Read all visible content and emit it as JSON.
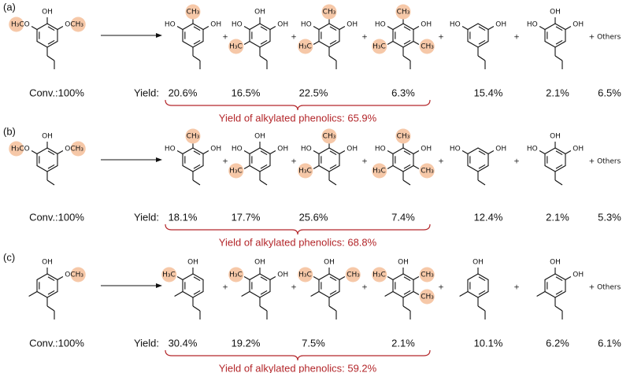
{
  "plus": "+",
  "rows": [
    {
      "label": "(a)",
      "reactant": [
        "OH",
        "H₃CO",
        "OCH₃"
      ],
      "products": [
        [
          "HO",
          "CH₃",
          "OH"
        ],
        [
          "OH",
          "HO",
          "OH",
          "H₃C"
        ],
        [
          "HO",
          "CH₃",
          "OH",
          "H₃C"
        ],
        [
          "HO",
          "CH₃",
          "OH",
          "H₃C",
          "CH₃"
        ],
        [
          "HO",
          "OH"
        ],
        [
          "HO",
          "OH",
          "OH"
        ]
      ],
      "others": "+ Others",
      "conversion": "Conv.:100%",
      "yield_label": "Yield:",
      "yields": [
        "20.6%",
        "16.5%",
        "22.5%",
        "6.3%",
        "15.4%",
        "2.1%",
        "6.5%"
      ],
      "summary": "Yield of alkylated phenolics: 65.9%"
    },
    {
      "label": "(b)",
      "reactant": [
        "OH",
        "H₃CO",
        "OCH₃"
      ],
      "products": [
        [
          "HO",
          "CH₃",
          "OH"
        ],
        [
          "OH",
          "HO",
          "OH",
          "H₃C"
        ],
        [
          "HO",
          "CH₃",
          "OH",
          "H₃C"
        ],
        [
          "HO",
          "CH₃",
          "OH",
          "H₃C",
          "CH₃"
        ],
        [
          "HO",
          "OH"
        ],
        [
          "HO",
          "OH",
          "OH"
        ]
      ],
      "others": "+ Others",
      "conversion": "Conv.:100%",
      "yield_label": "Yield:",
      "yields": [
        "18.1%",
        "17.7%",
        "25.6%",
        "7.4%",
        "12.4%",
        "2.1%",
        "5.3%"
      ],
      "summary": "Yield of alkylated phenolics: 68.8%"
    },
    {
      "label": "(c)",
      "reactant": [
        "OH",
        "OCH₃"
      ],
      "products": [
        [
          "OH",
          "H₃C"
        ],
        [
          "H₃C",
          "OH",
          "OH"
        ],
        [
          "H₃C",
          "OH",
          "CH₃"
        ],
        [
          "H₃C",
          "OH",
          "CH₃",
          "CH₃"
        ],
        [
          "OH"
        ],
        [
          "OH",
          "OH"
        ]
      ],
      "others": "+ Others",
      "conversion": "Conv.:100%",
      "yield_label": "Yield:",
      "yields": [
        "30.4%",
        "19.2%",
        "7.5%",
        "2.1%",
        "10.1%",
        "6.2%",
        "6.1%"
      ],
      "summary": "Yield of alkylated phenolics: 59.2%"
    }
  ]
}
